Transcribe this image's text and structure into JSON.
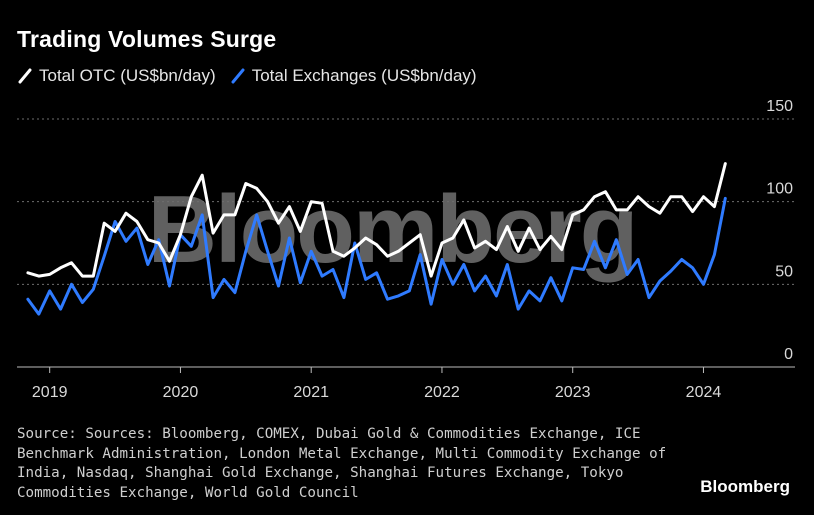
{
  "title": "Trading Volumes Surge",
  "colors": {
    "otc": "#ffffff",
    "exchanges": "#2f7bff",
    "grid": "#6e6e6e",
    "watermark": "#6a6a6a"
  },
  "source": "Source: Sources: Bloomberg, COMEX, Dubai Gold & Commodities Exchange, ICE Benchmark Administration, London Metal Exchange, Multi Commodity Exchange of India, Nasdaq, Shanghai Gold Exchange, Shanghai Futures Exchange, Tokyo Commodities Exchange, World Gold Council",
  "brand": "Bloomberg",
  "watermark": "Bloomberg",
  "chart_data": {
    "type": "line",
    "title": "Trading Volumes Surge",
    "xlabel": "",
    "ylabel": "",
    "ylim": [
      0,
      150
    ],
    "yticks": [
      0,
      50,
      100,
      150
    ],
    "xticks": [
      {
        "label": "2019",
        "value": 2019
      },
      {
        "label": "2020",
        "value": 2020
      },
      {
        "label": "2021",
        "value": 2021
      },
      {
        "label": "2022",
        "value": 2022
      },
      {
        "label": "2023",
        "value": 2023
      },
      {
        "label": "2024",
        "value": 2024
      }
    ],
    "xlim": [
      2018.75,
      2024.7
    ],
    "legend": "top-left",
    "grid": true,
    "x": [
      "2018-11",
      "2018-12",
      "2019-01",
      "2019-02",
      "2019-03",
      "2019-04",
      "2019-05",
      "2019-06",
      "2019-07",
      "2019-08",
      "2019-09",
      "2019-10",
      "2019-11",
      "2019-12",
      "2020-01",
      "2020-02",
      "2020-03",
      "2020-04",
      "2020-05",
      "2020-06",
      "2020-07",
      "2020-08",
      "2020-09",
      "2020-10",
      "2020-11",
      "2020-12",
      "2021-01",
      "2021-02",
      "2021-03",
      "2021-04",
      "2021-05",
      "2021-06",
      "2021-07",
      "2021-08",
      "2021-09",
      "2021-10",
      "2021-11",
      "2021-12",
      "2022-01",
      "2022-02",
      "2022-03",
      "2022-04",
      "2022-05",
      "2022-06",
      "2022-07",
      "2022-08",
      "2022-09",
      "2022-10",
      "2022-11",
      "2022-12",
      "2023-01",
      "2023-02",
      "2023-03",
      "2023-04",
      "2023-05",
      "2023-06",
      "2023-07",
      "2023-08",
      "2023-09",
      "2023-10",
      "2023-11",
      "2023-12",
      "2024-01",
      "2024-02",
      "2024-03"
    ],
    "series": [
      {
        "name": "Total OTC (US$bn/day)",
        "values": [
          57,
          55,
          56,
          60,
          63,
          55,
          55,
          87,
          82,
          93,
          88,
          77,
          75,
          64,
          80,
          103,
          116,
          81,
          92,
          92,
          111,
          108,
          100,
          87,
          97,
          82,
          100,
          99,
          70,
          67,
          72,
          78,
          74,
          67,
          70,
          75,
          80,
          55,
          75,
          78,
          89,
          72,
          76,
          71,
          85,
          70,
          84,
          71,
          79,
          71,
          92,
          95,
          103,
          106,
          95,
          95,
          103,
          97,
          93,
          103,
          103,
          94,
          103,
          97,
          123
        ]
      },
      {
        "name": "Total Exchanges (US$bn/day)",
        "values": [
          41,
          32,
          46,
          35,
          50,
          39,
          47,
          67,
          88,
          76,
          84,
          62,
          77,
          49,
          80,
          73,
          92,
          42,
          53,
          45,
          70,
          92,
          70,
          49,
          78,
          51,
          70,
          55,
          59,
          42,
          75,
          53,
          57,
          41,
          43,
          46,
          68,
          38,
          65,
          50,
          62,
          46,
          55,
          43,
          62,
          35,
          46,
          40,
          54,
          40,
          60,
          59,
          76,
          60,
          77,
          56,
          65,
          42,
          52,
          58,
          65,
          60,
          50,
          68,
          102
        ]
      }
    ]
  }
}
